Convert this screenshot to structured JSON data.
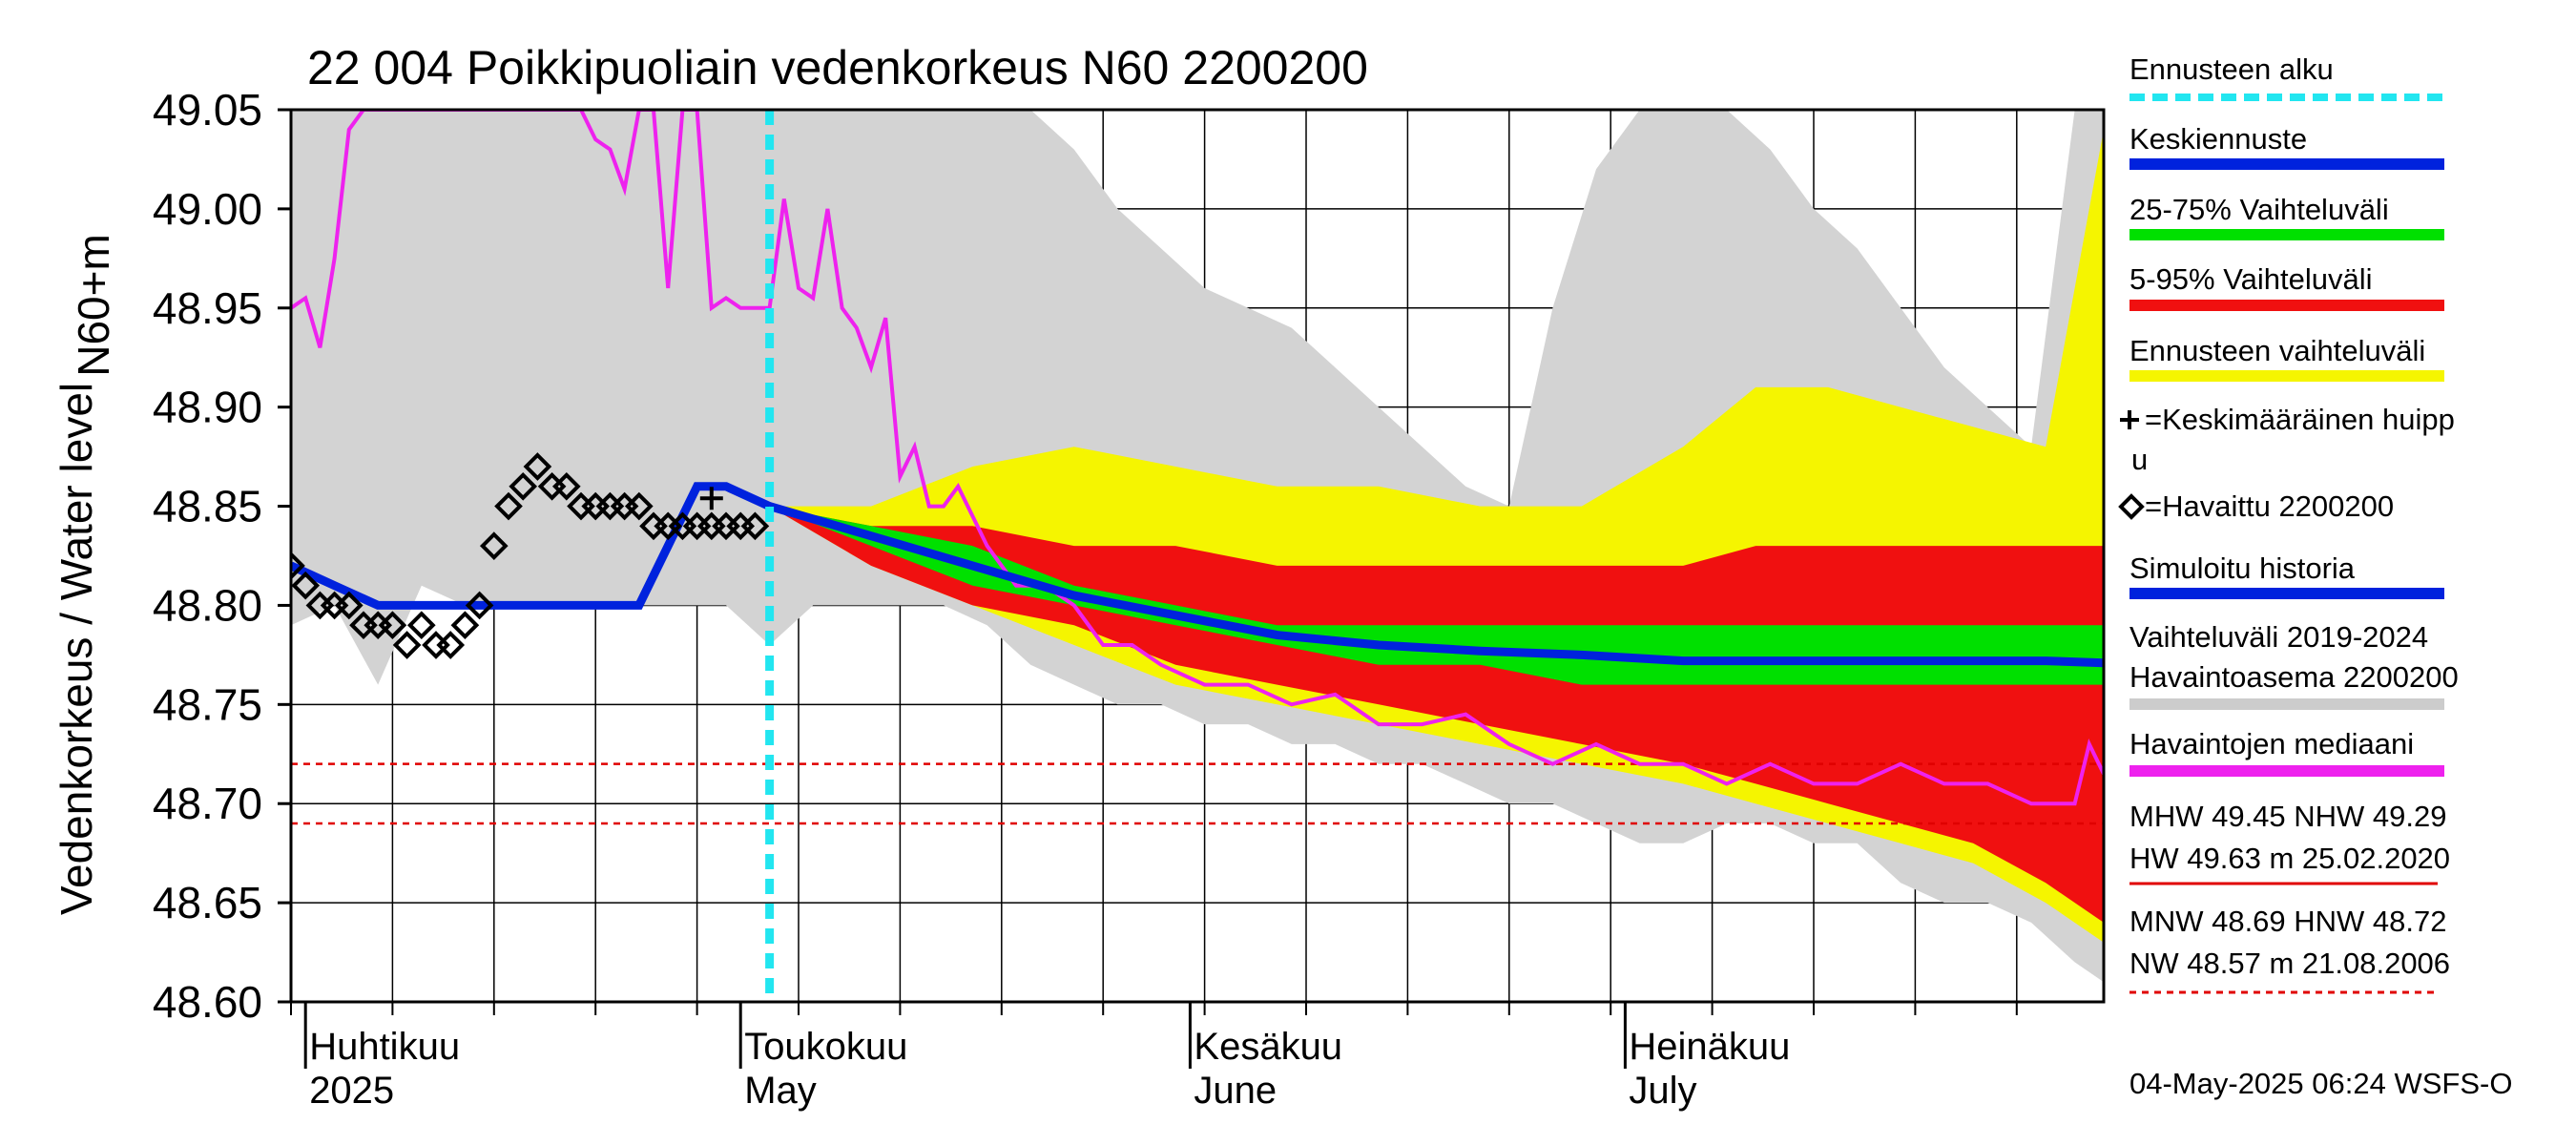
{
  "chart_data": {
    "type": "area",
    "title": "22 004 Poikkipuoliain vedenkorkeus N60 2200200",
    "ylabel_top": "N60+m",
    "ylabel": "Vedenkorkeus / Water level",
    "ylim": [
      48.6,
      49.05
    ],
    "yticks": [
      "48.60",
      "48.65",
      "48.70",
      "48.75",
      "48.80",
      "48.85",
      "48.90",
      "48.95",
      "49.00",
      "49.05"
    ],
    "xlim": [
      "2025-03-31",
      "2025-08-03"
    ],
    "grid": true,
    "legend_position": "right",
    "month_labels": [
      {
        "date": "2025-04-01",
        "fi": "Huhtikuu",
        "en": "2025"
      },
      {
        "date": "2025-05-01",
        "fi": "Toukokuu",
        "en": "May"
      },
      {
        "date": "2025-06-01",
        "fi": "Kesäkuu",
        "en": "June"
      },
      {
        "date": "2025-07-01",
        "fi": "Heinäkuu",
        "en": "July"
      }
    ],
    "forecast_start": "2025-05-03",
    "reference_lines": [
      {
        "name": "HNW",
        "value": 48.72
      },
      {
        "name": "MNW",
        "value": 48.69
      }
    ],
    "history_band_2019_2024": {
      "x": [
        "2025-03-31",
        "2025-04-03",
        "2025-04-06",
        "2025-04-09",
        "2025-04-12",
        "2025-04-15",
        "2025-04-18",
        "2025-04-21",
        "2025-04-24",
        "2025-04-27",
        "2025-04-30",
        "2025-05-03",
        "2025-05-06",
        "2025-05-09",
        "2025-05-12",
        "2025-05-15",
        "2025-05-18",
        "2025-05-21",
        "2025-05-24",
        "2025-05-27",
        "2025-05-30",
        "2025-06-02",
        "2025-06-05",
        "2025-06-08",
        "2025-06-11",
        "2025-06-14",
        "2025-06-17",
        "2025-06-20",
        "2025-06-23",
        "2025-06-26",
        "2025-06-29",
        "2025-07-02",
        "2025-07-05",
        "2025-07-08",
        "2025-07-11",
        "2025-07-14",
        "2025-07-17",
        "2025-07-20",
        "2025-07-23",
        "2025-07-26",
        "2025-07-29",
        "2025-08-01",
        "2025-08-03"
      ],
      "lower": [
        48.79,
        48.8,
        48.76,
        48.81,
        48.8,
        48.8,
        48.8,
        48.8,
        48.8,
        48.8,
        48.8,
        48.78,
        48.8,
        48.8,
        48.8,
        48.8,
        48.79,
        48.77,
        48.76,
        48.75,
        48.75,
        48.74,
        48.74,
        48.73,
        48.73,
        48.72,
        48.72,
        48.71,
        48.7,
        48.7,
        48.69,
        48.68,
        48.68,
        48.69,
        48.69,
        48.68,
        48.68,
        48.66,
        48.65,
        48.65,
        48.64,
        48.62,
        48.61
      ],
      "upper": [
        49.05,
        49.05,
        49.05,
        49.05,
        49.05,
        49.05,
        49.05,
        49.05,
        49.05,
        49.05,
        49.05,
        49.05,
        49.05,
        49.05,
        49.05,
        49.05,
        49.05,
        49.05,
        49.03,
        49.0,
        48.98,
        48.96,
        48.95,
        48.94,
        48.92,
        48.9,
        48.88,
        48.86,
        48.85,
        48.95,
        49.02,
        49.05,
        49.05,
        49.05,
        49.03,
        49.0,
        48.98,
        48.95,
        48.92,
        48.9,
        48.88,
        49.05,
        49.05
      ]
    },
    "forecast_range": {
      "x": [
        "2025-05-03",
        "2025-05-10",
        "2025-05-17",
        "2025-05-24",
        "2025-05-31",
        "2025-06-07",
        "2025-06-14",
        "2025-06-21",
        "2025-06-28",
        "2025-07-05",
        "2025-07-10",
        "2025-07-15",
        "2025-07-20",
        "2025-07-25",
        "2025-07-30",
        "2025-08-03"
      ],
      "lower": [
        48.85,
        48.82,
        48.8,
        48.78,
        48.76,
        48.75,
        48.74,
        48.73,
        48.72,
        48.71,
        48.7,
        48.69,
        48.68,
        48.67,
        48.65,
        48.63
      ],
      "upper": [
        48.85,
        48.85,
        48.87,
        48.88,
        48.87,
        48.86,
        48.86,
        48.85,
        48.85,
        48.88,
        48.91,
        48.91,
        48.9,
        48.89,
        48.88,
        49.04
      ]
    },
    "band_5_95": {
      "x": [
        "2025-05-03",
        "2025-05-10",
        "2025-05-17",
        "2025-05-24",
        "2025-05-31",
        "2025-06-07",
        "2025-06-14",
        "2025-06-21",
        "2025-06-28",
        "2025-07-05",
        "2025-07-10",
        "2025-07-15",
        "2025-07-20",
        "2025-07-25",
        "2025-07-30",
        "2025-08-03"
      ],
      "lower": [
        48.85,
        48.82,
        48.8,
        48.79,
        48.77,
        48.76,
        48.75,
        48.74,
        48.73,
        48.72,
        48.71,
        48.7,
        48.69,
        48.68,
        48.66,
        48.64
      ],
      "upper": [
        48.85,
        48.84,
        48.84,
        48.83,
        48.83,
        48.82,
        48.82,
        48.82,
        48.82,
        48.82,
        48.83,
        48.83,
        48.83,
        48.83,
        48.83,
        48.83
      ]
    },
    "band_25_75": {
      "x": [
        "2025-05-03",
        "2025-05-10",
        "2025-05-17",
        "2025-05-24",
        "2025-05-31",
        "2025-06-07",
        "2025-06-14",
        "2025-06-21",
        "2025-06-28",
        "2025-07-05",
        "2025-07-10",
        "2025-07-15",
        "2025-07-20",
        "2025-07-25",
        "2025-07-30",
        "2025-08-03"
      ],
      "lower": [
        48.85,
        48.83,
        48.81,
        48.8,
        48.79,
        48.78,
        48.77,
        48.77,
        48.76,
        48.76,
        48.76,
        48.76,
        48.76,
        48.76,
        48.76,
        48.76
      ],
      "upper": [
        48.85,
        48.84,
        48.83,
        48.81,
        48.8,
        48.79,
        48.79,
        48.79,
        48.79,
        48.79,
        48.79,
        48.79,
        48.79,
        48.79,
        48.79,
        48.79
      ]
    },
    "mean_forecast": {
      "x": [
        "2025-05-03",
        "2025-05-10",
        "2025-05-17",
        "2025-05-24",
        "2025-05-31",
        "2025-06-07",
        "2025-06-14",
        "2025-06-21",
        "2025-06-28",
        "2025-07-05",
        "2025-07-10",
        "2025-07-15",
        "2025-07-20",
        "2025-07-25",
        "2025-07-30",
        "2025-08-03"
      ],
      "y": [
        48.85,
        48.835,
        48.82,
        48.805,
        48.795,
        48.785,
        48.78,
        48.777,
        48.775,
        48.772,
        48.772,
        48.772,
        48.772,
        48.772,
        48.772,
        48.771
      ]
    },
    "simulated_history": {
      "x": [
        "2025-03-31",
        "2025-04-03",
        "2025-04-06",
        "2025-04-10",
        "2025-04-15",
        "2025-04-20",
        "2025-04-24",
        "2025-04-26",
        "2025-04-28",
        "2025-04-30",
        "2025-05-03"
      ],
      "y": [
        48.82,
        48.81,
        48.8,
        48.8,
        48.8,
        48.8,
        48.8,
        48.83,
        48.86,
        48.86,
        48.85
      ]
    },
    "observed_median": {
      "x": [
        "2025-03-31",
        "2025-04-01",
        "2025-04-02",
        "2025-04-03",
        "2025-04-04",
        "2025-04-05",
        "2025-04-06",
        "2025-04-07",
        "2025-04-08",
        "2025-04-20",
        "2025-04-21",
        "2025-04-22",
        "2025-04-23",
        "2025-04-24",
        "2025-04-25",
        "2025-04-26",
        "2025-04-27",
        "2025-04-28",
        "2025-04-29",
        "2025-04-30",
        "2025-05-01",
        "2025-05-02",
        "2025-05-03",
        "2025-05-04",
        "2025-05-05",
        "2025-05-06",
        "2025-05-07",
        "2025-05-08",
        "2025-05-09",
        "2025-05-10",
        "2025-05-11",
        "2025-05-12",
        "2025-05-13",
        "2025-05-14",
        "2025-05-15",
        "2025-05-16",
        "2025-05-18",
        "2025-05-20",
        "2025-05-22",
        "2025-05-24",
        "2025-05-26",
        "2025-05-28",
        "2025-05-30",
        "2025-06-02",
        "2025-06-05",
        "2025-06-08",
        "2025-06-11",
        "2025-06-14",
        "2025-06-17",
        "2025-06-20",
        "2025-06-23",
        "2025-06-26",
        "2025-06-29",
        "2025-07-02",
        "2025-07-05",
        "2025-07-08",
        "2025-07-11",
        "2025-07-14",
        "2025-07-17",
        "2025-07-20",
        "2025-07-23",
        "2025-07-26",
        "2025-07-29",
        "2025-08-01",
        "2025-08-02",
        "2025-08-03"
      ],
      "y": [
        48.95,
        48.955,
        48.93,
        48.975,
        49.04,
        49.05,
        49.05,
        49.05,
        49.05,
        49.05,
        49.035,
        49.03,
        49.01,
        49.05,
        49.05,
        48.96,
        49.05,
        49.05,
        48.95,
        48.955,
        48.95,
        48.95,
        48.95,
        49.005,
        48.96,
        48.955,
        49.0,
        48.95,
        48.94,
        48.92,
        48.945,
        48.865,
        48.88,
        48.85,
        48.85,
        48.86,
        48.83,
        48.81,
        48.81,
        48.8,
        48.78,
        48.78,
        48.77,
        48.76,
        48.76,
        48.75,
        48.755,
        48.74,
        48.74,
        48.745,
        48.73,
        48.72,
        48.73,
        48.72,
        48.72,
        48.71,
        48.72,
        48.71,
        48.71,
        48.72,
        48.71,
        48.71,
        48.7,
        48.7,
        48.73,
        48.715
      ]
    },
    "observed_2200200": {
      "x": [
        "2025-03-31",
        "2025-04-01",
        "2025-04-02",
        "2025-04-03",
        "2025-04-04",
        "2025-04-05",
        "2025-04-06",
        "2025-04-07",
        "2025-04-08",
        "2025-04-09",
        "2025-04-10",
        "2025-04-11",
        "2025-04-12",
        "2025-04-13",
        "2025-04-14",
        "2025-04-15",
        "2025-04-16",
        "2025-04-17",
        "2025-04-18",
        "2025-04-19",
        "2025-04-20",
        "2025-04-21",
        "2025-04-22",
        "2025-04-23",
        "2025-04-24",
        "2025-04-25",
        "2025-04-26",
        "2025-04-27",
        "2025-04-28",
        "2025-04-29",
        "2025-04-30",
        "2025-05-01",
        "2025-05-02"
      ],
      "y": [
        48.82,
        48.81,
        48.8,
        48.8,
        48.8,
        48.79,
        48.79,
        48.79,
        48.78,
        48.79,
        48.78,
        48.78,
        48.79,
        48.8,
        48.83,
        48.85,
        48.86,
        48.87,
        48.86,
        48.86,
        48.85,
        48.85,
        48.85,
        48.85,
        48.85,
        48.84,
        48.84,
        48.84,
        48.84,
        48.84,
        48.84,
        48.84,
        48.84
      ]
    },
    "mean_peak": {
      "x": "2025-04-29",
      "y": 48.854
    },
    "legend": [
      {
        "label": "Ennusteen alku",
        "color": "#22e6f0",
        "style": "dashed"
      },
      {
        "label": "Keskiennuste",
        "color": "#0022dd",
        "style": "solid"
      },
      {
        "label": "25-75% Vaihteluväli",
        "color": "#00e000",
        "style": "solid"
      },
      {
        "label": "5-95% Vaihteluväli",
        "color": "#f01010",
        "style": "solid"
      },
      {
        "label": "Ennusteen vaihteluväli",
        "color": "#f5f500",
        "style": "solid"
      },
      {
        "label": "=Keskimääräinen huippu",
        "color": "#000000",
        "style": "marker-plus"
      },
      {
        "label": "=Havaittu 2200200",
        "color": "#000000",
        "style": "marker-diamond"
      },
      {
        "label": "Simuloitu historia",
        "color": "#0022dd",
        "style": "solid"
      },
      {
        "label": "Vaihteluväli 2019-2024\n Havaintoasema 2200200",
        "color": "#cccccc",
        "style": "solid"
      },
      {
        "label": "Havaintojen mediaani",
        "color": "#ee22ee",
        "style": "solid"
      }
    ],
    "stats": {
      "line1": "MHW  49.45 NHW  49.29",
      "line2": "HW  49.63 m 25.02.2020",
      "line3": "MNW  48.69 HNW  48.72",
      "line4": "NW  48.57 m 21.08.2006"
    },
    "footer": "04-May-2025 06:24 WSFS-O",
    "colors": {
      "history_band": "#d3d3d3",
      "forecast_range": "#f5f500",
      "band_5_95": "#f01010",
      "band_25_75": "#00e000",
      "mean": "#0022dd",
      "median": "#ee22ee",
      "forecast_start": "#22e6f0",
      "ref": "#e00000",
      "grid": "#000000"
    }
  }
}
